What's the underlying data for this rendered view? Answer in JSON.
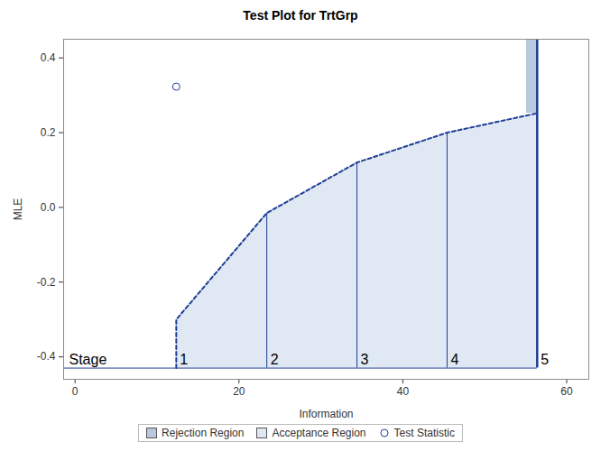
{
  "chart_data": {
    "type": "area",
    "title": "Test Plot for TrtGrp",
    "x_label": "Information",
    "y_label": "MLE",
    "xlim": [
      -1.4,
      62.7
    ],
    "ylim": [
      -0.46,
      0.45
    ],
    "xticks": [
      0,
      20,
      40,
      60
    ],
    "yticks": [
      -0.4,
      -0.2,
      {
        "value": 0,
        "label": "0.0"
      },
      0.2,
      0.4
    ],
    "stage_label": "Stage",
    "stages": [
      1,
      2,
      3,
      4,
      5
    ],
    "information": [
      12.35,
      23.4,
      34.4,
      45.4,
      56.4
    ],
    "boundary": [
      -0.3,
      -0.015,
      0.12,
      0.2,
      0.252
    ],
    "baseline": -0.43,
    "rejection_region": {
      "x": [
        55.1,
        56.4
      ],
      "y": [
        0.252,
        0.45
      ]
    },
    "test_statistic": {
      "x": 12.35,
      "y": 0.323
    },
    "legend": "bottom",
    "series": [
      {
        "name": "Rejection Region",
        "color": "#b9c8df"
      },
      {
        "name": "Acceptance Region",
        "color": "#dfe8f3"
      },
      {
        "name": "Test Statistic",
        "color": "#1f3e96",
        "marker": "circle"
      }
    ],
    "line_style": "dashed",
    "color": "#1f3e96"
  }
}
